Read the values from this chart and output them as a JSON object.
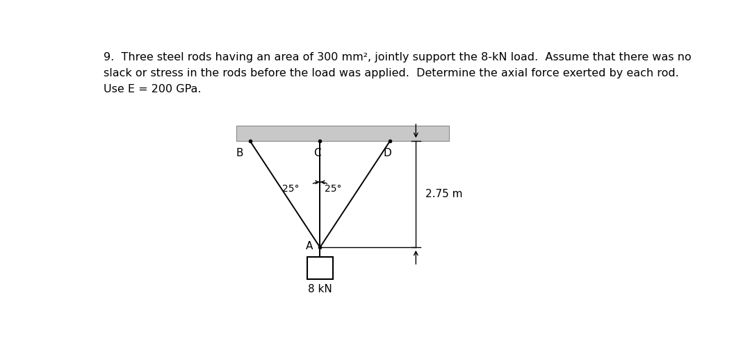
{
  "title_line1": "9.  Three steel rods having an area of 300 mm², jointly support the 8-kN load.  Assume that there was no",
  "title_line2": "slack or stress in the rods before the load was applied.  Determine the axial force exerted by each rod.",
  "title_line3": "Use E = 200 GPa.",
  "background_color": "#ffffff",
  "ceiling_color": "#c8c8c8",
  "rod_color": "#000000",
  "label_B": "B",
  "label_C": "C",
  "label_D": "D",
  "label_A": "A",
  "label_25_left": "25°",
  "label_25_right": "25°",
  "label_length": "2.75 m",
  "label_load": "8 kN",
  "fig_width": 10.79,
  "fig_height": 5.17,
  "text_fontsize": 11.5,
  "diagram_fontsize": 11
}
